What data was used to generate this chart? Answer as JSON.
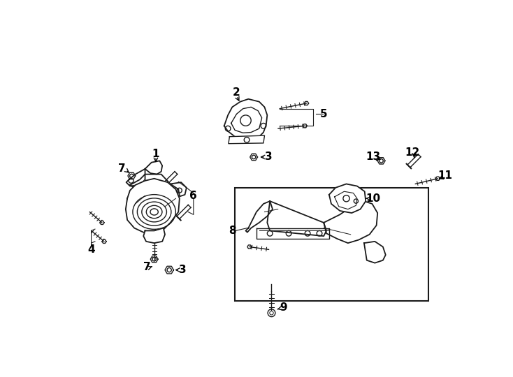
{
  "bg_color": "#ffffff",
  "line_color": "#1a1a1a",
  "figsize": [
    7.34,
    5.4
  ],
  "dpi": 100,
  "xlim": [
    0,
    734
  ],
  "ylim": [
    0,
    540
  ]
}
